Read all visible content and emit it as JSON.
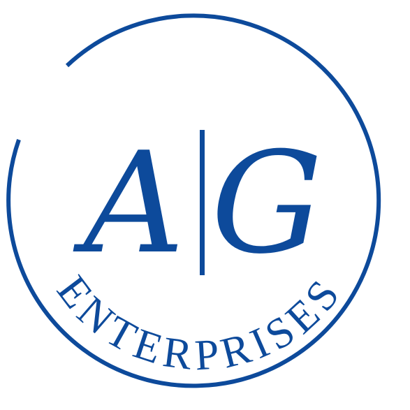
{
  "logo": {
    "monogram_left": "A",
    "monogram_right": "G",
    "wordmark": "ENTERPRISES",
    "brand_color": "#0d4a9b",
    "background_color": "#ffffff"
  }
}
